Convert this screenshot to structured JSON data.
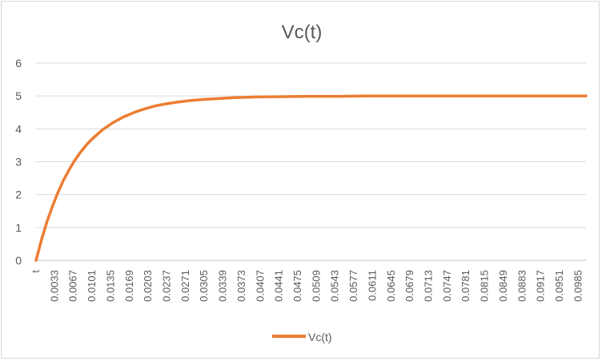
{
  "chart_data": {
    "type": "line",
    "title": "Vc(t)",
    "xlabel": "",
    "ylabel": "",
    "first_category": "t",
    "x_tick_labels": [
      "0.0033",
      "0.0067",
      "0.0101",
      "0.0135",
      "0.0169",
      "0.0203",
      "0.0237",
      "0.0271",
      "0.0305",
      "0.0339",
      "0.0373",
      "0.0407",
      "0.0441",
      "0.0475",
      "0.0509",
      "0.0543",
      "0.0577",
      "0.0611",
      "0.0645",
      "0.0679",
      "0.0713",
      "0.0747",
      "0.0781",
      "0.0815",
      "0.0849",
      "0.0883",
      "0.0917",
      "0.0951",
      "0.0985"
    ],
    "x_range": [
      0,
      0.1
    ],
    "x_step": 0.0001,
    "ylim": [
      0,
      6
    ],
    "y_ticks": [
      0,
      1,
      2,
      3,
      4,
      5,
      6
    ],
    "grid": true,
    "legend_position": "bottom",
    "series": [
      {
        "name": "Vc(t)",
        "color": "#ED7D31",
        "x": [
          0,
          0.001,
          0.002,
          0.003,
          0.004,
          0.005,
          0.006,
          0.007,
          0.008,
          0.009,
          0.01,
          0.012,
          0.014,
          0.016,
          0.018,
          0.02,
          0.022,
          0.024,
          0.026,
          0.028,
          0.03,
          0.033,
          0.036,
          0.04,
          0.045,
          0.05,
          0.055,
          0.06,
          0.07,
          0.08,
          0.09,
          0.1
        ],
        "values": [
          0,
          0.63,
          1.18,
          1.65,
          2.07,
          2.44,
          2.75,
          3.03,
          3.27,
          3.48,
          3.66,
          3.96,
          4.19,
          4.37,
          4.51,
          4.62,
          4.71,
          4.77,
          4.82,
          4.86,
          4.89,
          4.92,
          4.95,
          4.97,
          4.98,
          4.99,
          4.99,
          5.0,
          5.0,
          5.0,
          5.0,
          5.0
        ]
      }
    ]
  }
}
